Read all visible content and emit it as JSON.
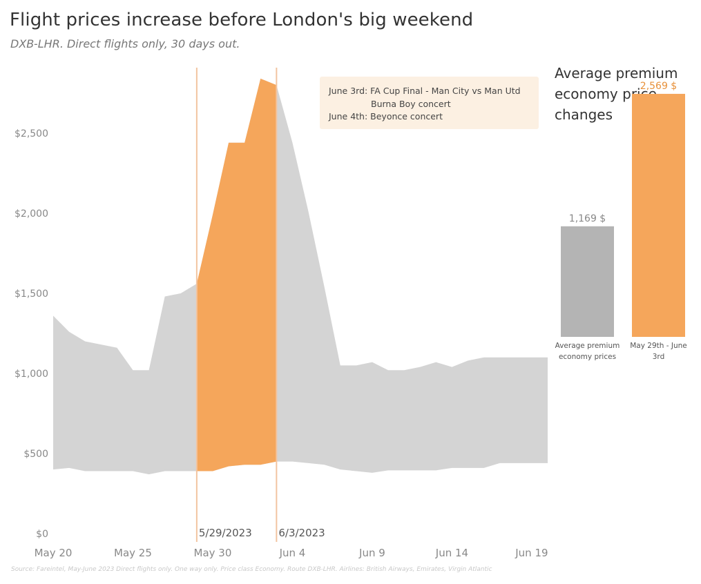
{
  "title": "Flight prices increase before London's big weekend",
  "subtitle": "DXB-LHR. Direct flights only, 30 days out.",
  "source_note": "Source: Fareintel, May-June 2023 Direct flights only. One way only. Price class Economy. Route DXB-LHR. Airlines: British Airways, Emirates, Virgin Atlantic",
  "annotation": {
    "line1": "June 3rd: FA Cup Final - Man City vs Man Utd",
    "line2": "Burna Boy concert",
    "line3": "June 4th: Beyonce concert"
  },
  "colors": {
    "range_fill": "#d4d4d4",
    "highlight": "#f5a65b",
    "ref_line": "#f2c4a0",
    "grey_bar": "#b4b4b4",
    "annotation_bg": "#fcf0e2",
    "axis_text": "#888888",
    "value_label_orange": "#e8913a"
  },
  "chart_data": [
    {
      "type": "area",
      "title": "",
      "xlabel": "",
      "ylabel": "",
      "ylim": [
        0,
        2900
      ],
      "yticks": [
        0,
        500,
        1000,
        1500,
        2000,
        2500
      ],
      "ytick_labels": [
        "$0",
        "$500",
        "$1,000",
        "$1,500",
        "$2,000",
        "$2,500"
      ],
      "xtick_labels": [
        "May 20",
        "May 25",
        "May 30",
        "Jun 4",
        "Jun 9",
        "Jun 14",
        "Jun 19"
      ],
      "xtick_dates": [
        "2023-05-20",
        "2023-05-25",
        "2023-05-30",
        "2023-06-04",
        "2023-06-09",
        "2023-06-14",
        "2023-06-19"
      ],
      "grid": false,
      "x": [
        "2023-05-20",
        "2023-05-21",
        "2023-05-22",
        "2023-05-23",
        "2023-05-24",
        "2023-05-25",
        "2023-05-26",
        "2023-05-27",
        "2023-05-28",
        "2023-05-29",
        "2023-05-30",
        "2023-05-31",
        "2023-06-01",
        "2023-06-02",
        "2023-06-03",
        "2023-06-04",
        "2023-06-05",
        "2023-06-06",
        "2023-06-07",
        "2023-06-08",
        "2023-06-09",
        "2023-06-10",
        "2023-06-11",
        "2023-06-12",
        "2023-06-13",
        "2023-06-14",
        "2023-06-15",
        "2023-06-16",
        "2023-06-17",
        "2023-06-18",
        "2023-06-19",
        "2023-06-20"
      ],
      "series": [
        {
          "values_high": [
            1360,
            1260,
            1200,
            1180,
            1160,
            1020,
            1020,
            1480,
            1500,
            1560,
            1990,
            2440,
            2440,
            2840,
            2800,
            2440,
            2010,
            1540,
            1050,
            1050,
            1070,
            1020,
            1020,
            1040,
            1070,
            1040,
            1080,
            1100,
            1100,
            1100,
            1100,
            1100
          ],
          "values_low": [
            400,
            410,
            390,
            390,
            390,
            390,
            370,
            390,
            390,
            390,
            390,
            420,
            430,
            430,
            450,
            450,
            440,
            430,
            400,
            390,
            380,
            395,
            395,
            395,
            395,
            410,
            410,
            410,
            440,
            440,
            440,
            440
          ]
        }
      ],
      "highlight_range": [
        "2023-05-29",
        "2023-06-03"
      ],
      "reference_lines": [
        {
          "date": "2023-05-29",
          "label": "5/29/2023"
        },
        {
          "date": "2023-06-03",
          "label": "6/3/2023"
        }
      ]
    },
    {
      "type": "bar",
      "title": "Average premium economy price changes",
      "categories": [
        "Average premium economy prices",
        "May 29th - June 3rd"
      ],
      "values": [
        1169,
        2569
      ],
      "value_labels": [
        "1,169 $",
        "2,569 $"
      ],
      "ylim": [
        0,
        2700
      ]
    }
  ]
}
